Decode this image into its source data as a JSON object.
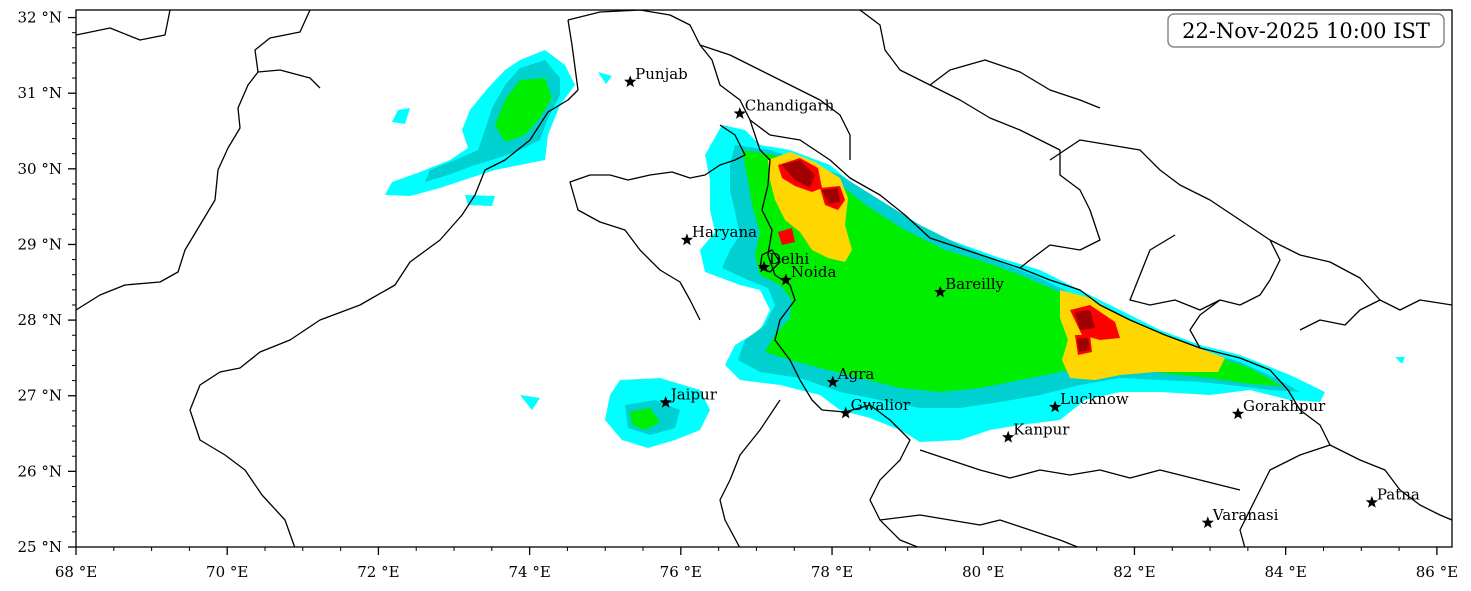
{
  "map": {
    "timestamp": "22-Nov-2025 10:00 IST",
    "lon_range": [
      68,
      86.2
    ],
    "lat_range": [
      25,
      32.1
    ],
    "x_ticks": [
      {
        "value": 68,
        "label": "68 °E"
      },
      {
        "value": 70,
        "label": "70 °E"
      },
      {
        "value": 72,
        "label": "72 °E"
      },
      {
        "value": 74,
        "label": "74 °E"
      },
      {
        "value": 76,
        "label": "76 °E"
      },
      {
        "value": 78,
        "label": "78 °E"
      },
      {
        "value": 80,
        "label": "80 °E"
      },
      {
        "value": 82,
        "label": "82 °E"
      },
      {
        "value": 84,
        "label": "84 °E"
      },
      {
        "value": 86,
        "label": "86 °E"
      }
    ],
    "y_ticks": [
      {
        "value": 25,
        "label": "25 °N"
      },
      {
        "value": 26,
        "label": "26 °N"
      },
      {
        "value": 27,
        "label": "27 °N"
      },
      {
        "value": 28,
        "label": "28 °N"
      },
      {
        "value": 29,
        "label": "29 °N"
      },
      {
        "value": 30,
        "label": "30 °N"
      },
      {
        "value": 31,
        "label": "31 °N"
      },
      {
        "value": 32,
        "label": "32 °N"
      }
    ],
    "cities": [
      {
        "name": "Punjab",
        "lon": 75.33,
        "lat": 31.15
      },
      {
        "name": "Chandigarh",
        "lon": 76.78,
        "lat": 30.73
      },
      {
        "name": "Haryana",
        "lon": 76.08,
        "lat": 29.06
      },
      {
        "name": "Delhi",
        "lon": 77.1,
        "lat": 28.7
      },
      {
        "name": "Noida",
        "lon": 77.39,
        "lat": 28.53
      },
      {
        "name": "Bareilly",
        "lon": 79.43,
        "lat": 28.37
      },
      {
        "name": "Agra",
        "lon": 78.01,
        "lat": 27.18
      },
      {
        "name": "Jaipur",
        "lon": 75.8,
        "lat": 26.91
      },
      {
        "name": "Gwalior",
        "lon": 78.18,
        "lat": 26.77
      },
      {
        "name": "Lucknow",
        "lon": 80.95,
        "lat": 26.85
      },
      {
        "name": "Kanpur",
        "lon": 80.33,
        "lat": 26.45
      },
      {
        "name": "Gorakhpur",
        "lon": 83.37,
        "lat": 26.76
      },
      {
        "name": "Varanasi",
        "lon": 82.97,
        "lat": 25.32
      },
      {
        "name": "Patna",
        "lon": 85.14,
        "lat": 25.59
      }
    ],
    "precip_colors": {
      "light": "#00ffff",
      "light_moderate": "#00d0d0",
      "moderate": "#00ee00",
      "moderate_heavy": "#33cc33",
      "heavy": "#ffd700",
      "very_heavy": "#ff0000",
      "extreme": "#a00000"
    }
  }
}
